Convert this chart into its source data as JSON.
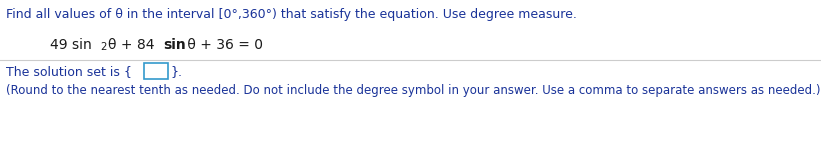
{
  "line1": "Find all values of θ in the interval [0°,360°) that satisfy the equation. Use degree measure.",
  "eq_part1": "49 sin",
  "eq_super": "2",
  "eq_part2": "θ + 84 sin θ + 36 = 0",
  "line3_prefix": "The solution set is {",
  "line3_suffix": "}.",
  "line4": "(Round to the nearest tenth as needed. Do not include the degree symbol in your answer. Use a comma to separate answers as needed.)",
  "text_color": "#1a3399",
  "eq_color": "#1a1a1a",
  "bg_color": "#ffffff",
  "divider_color": "#cccccc",
  "box_color": "#3399cc",
  "font_size_line1": 9.0,
  "font_size_eq": 10.0,
  "font_size_line3": 9.0,
  "font_size_line4": 8.5
}
